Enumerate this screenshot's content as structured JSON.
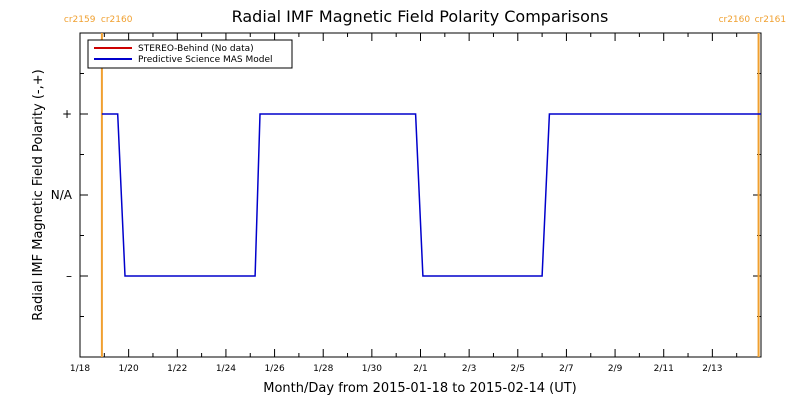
{
  "chart_data": {
    "type": "line",
    "title": "Radial IMF Magnetic Field Polarity Comparisons",
    "xlabel": "Month/Day from 2015-01-18 to 2015-02-14 (UT)",
    "ylabel": "Radial IMF Magnetic Field Polarity (-,+)",
    "xlim": [
      0,
      28
    ],
    "ylim": [
      -2,
      2
    ],
    "x_unit": "days from 2015-01-18 00:00 UT",
    "x_ticks": [
      {
        "x": 0,
        "label": "1/18"
      },
      {
        "x": 2,
        "label": "1/20"
      },
      {
        "x": 4,
        "label": "1/22"
      },
      {
        "x": 6,
        "label": "1/24"
      },
      {
        "x": 8,
        "label": "1/26"
      },
      {
        "x": 10,
        "label": "1/28"
      },
      {
        "x": 12,
        "label": "1/30"
      },
      {
        "x": 14,
        "label": "2/1"
      },
      {
        "x": 16,
        "label": "2/3"
      },
      {
        "x": 18,
        "label": "2/5"
      },
      {
        "x": 20,
        "label": "2/7"
      },
      {
        "x": 22,
        "label": "2/9"
      },
      {
        "x": 24,
        "label": "2/11"
      },
      {
        "x": 26,
        "label": "2/13"
      }
    ],
    "y_ticks": [
      {
        "y": 1,
        "label": "+"
      },
      {
        "y": 0,
        "label": "N/A"
      },
      {
        "y": -1,
        "label": "–"
      }
    ],
    "carrington_markers": [
      {
        "x": 0.9,
        "left_label": "cr2159",
        "right_label": "cr2160",
        "side": "left"
      },
      {
        "x": 27.9,
        "left_label": "cr2160",
        "right_label": "cr2161",
        "side": "right"
      }
    ],
    "series": [
      {
        "name": "STEREO-Behind (No data)",
        "color": "#cc0000",
        "x": [],
        "y": []
      },
      {
        "name": "Predictive Science MAS Model",
        "color": "#0000cc",
        "x": [
          0.9,
          1.55,
          1.85,
          7.2,
          7.4,
          13.8,
          14.1,
          19.0,
          19.3,
          28.0
        ],
        "y": [
          1,
          1,
          -1,
          -1,
          1,
          1,
          -1,
          -1,
          1,
          1
        ]
      }
    ],
    "marker_color": "#f0a030",
    "legend_position": "top-left",
    "grid": false
  }
}
